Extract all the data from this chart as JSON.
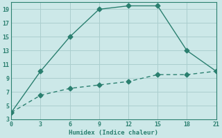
{
  "xlabel": "Humidex (Indice chaleur)",
  "line1_x": [
    0,
    3,
    6,
    9,
    12,
    15,
    18,
    21
  ],
  "line1_y": [
    4,
    10,
    15,
    19,
    19.5,
    19.5,
    13,
    10
  ],
  "line2_x": [
    0,
    3,
    6,
    9,
    12,
    15,
    18,
    21
  ],
  "line2_y": [
    4,
    6.5,
    7.5,
    8.0,
    8.5,
    9.5,
    9.5,
    10
  ],
  "line_color": "#2a7f6f",
  "bg_color": "#cce8e8",
  "grid_color": "#aacece",
  "xlim": [
    0,
    21
  ],
  "ylim": [
    3,
    20
  ],
  "xticks": [
    0,
    3,
    6,
    9,
    12,
    15,
    18,
    21
  ],
  "yticks": [
    3,
    5,
    7,
    9,
    11,
    13,
    15,
    17,
    19
  ],
  "markersize": 3.5
}
